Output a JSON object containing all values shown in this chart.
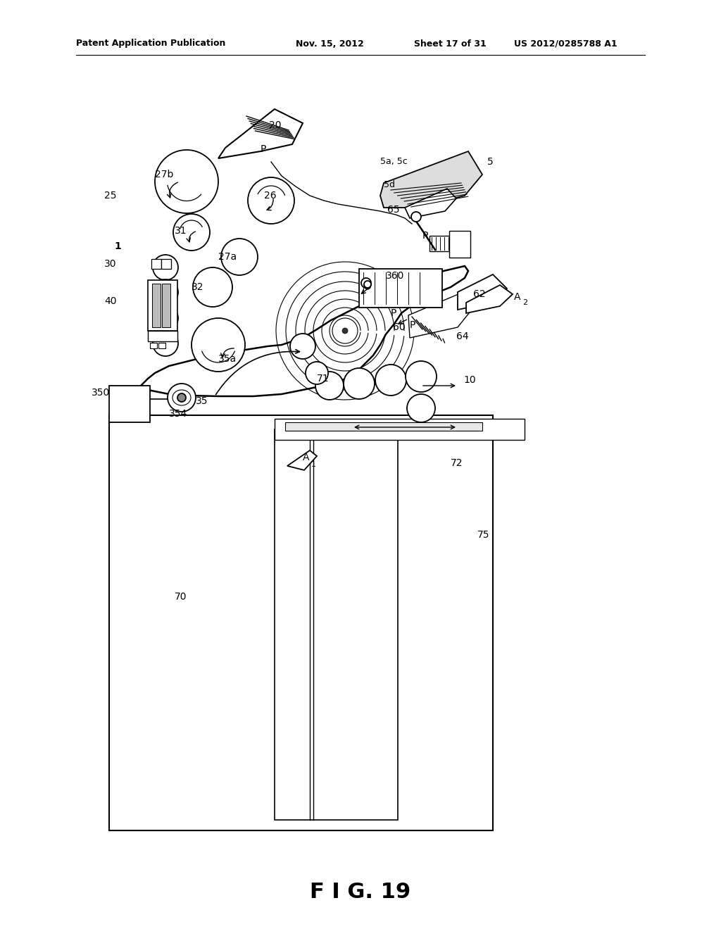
{
  "bg_color": "#ffffff",
  "line_color": "#000000",
  "header_text": "Patent Application Publication",
  "header_date": "Nov. 15, 2012",
  "header_sheet": "Sheet 17 of 31",
  "header_patent": "US 2012/0285788 A1",
  "figure_label": "F I G. 19"
}
